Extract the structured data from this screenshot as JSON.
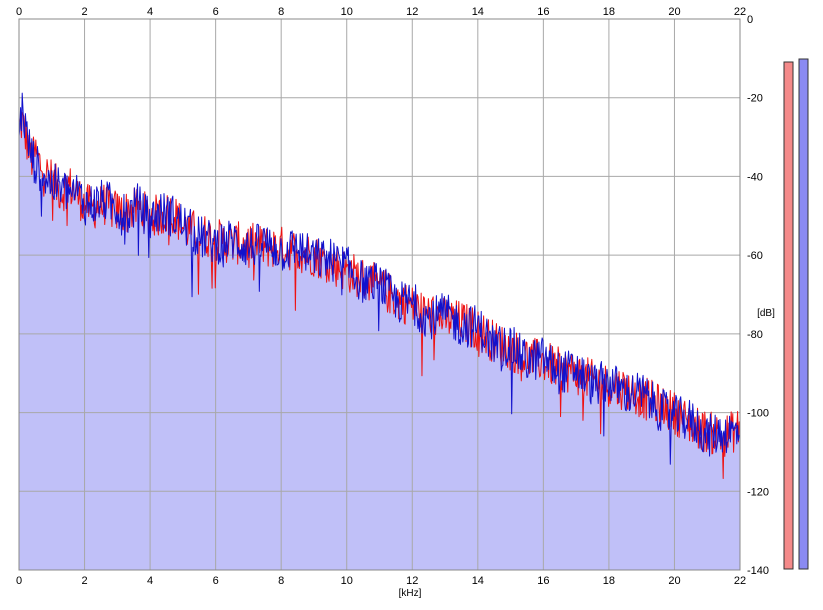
{
  "chart_data": {
    "type": "line",
    "title": "",
    "xlabel": "[kHz]",
    "ylabel": "[dB]",
    "xlim": [
      0,
      22
    ],
    "ylim": [
      -140,
      0
    ],
    "x_ticks": [
      "0",
      "2",
      "4",
      "6",
      "8",
      "10",
      "12",
      "14",
      "16",
      "18",
      "20",
      "22"
    ],
    "x_ticks_top": [
      "0",
      "2",
      "4",
      "6",
      "8",
      "10",
      "12",
      "14",
      "16",
      "18",
      "20",
      "22"
    ],
    "y_ticks": [
      "0",
      "-20",
      "-40",
      "-60",
      "-80",
      "-100",
      "-120",
      "-140"
    ],
    "grid": true,
    "colors": {
      "series_1": "#ee1111",
      "series_2": "#1111cc",
      "fill": "#c0c0f8",
      "grid": "#a8a8a8",
      "meter_1": "#f48a8a",
      "meter_2": "#8a8af2"
    },
    "series": [
      {
        "x": [
          0,
          0.1,
          0.2,
          0.3,
          0.4,
          0.5,
          0.7,
          1,
          1.3,
          1.5,
          1.8,
          2,
          2.3,
          2.6,
          3,
          3.3,
          3.6,
          4,
          4.3,
          4.7,
          5,
          5.4,
          6,
          6.5,
          7,
          7.5,
          8,
          8.5,
          9,
          9.5,
          10,
          10.5,
          11,
          11.5,
          12,
          12.5,
          13,
          13.5,
          14,
          14.5,
          15,
          15.5,
          16,
          16.5,
          17,
          17.5,
          18,
          18.5,
          19,
          19.5,
          20,
          20.5,
          21,
          21.5,
          22
        ],
        "values": [
          -28,
          -26,
          -30,
          -33,
          -36,
          -34,
          -38,
          -41,
          -44,
          -42,
          -45,
          -47,
          -48,
          -47,
          -49,
          -49,
          -48,
          -50,
          -50,
          -49,
          -53,
          -54,
          -56,
          -57,
          -57,
          -58,
          -58,
          -59,
          -60,
          -62,
          -64,
          -66,
          -68,
          -71,
          -73,
          -75,
          -76,
          -77,
          -79,
          -82,
          -84,
          -86,
          -87,
          -89,
          -90,
          -92,
          -93,
          -94,
          -96,
          -98,
          -100,
          -103,
          -105,
          -106,
          -104
        ]
      },
      {
        "x": [
          0,
          0.1,
          0.2,
          0.3,
          0.4,
          0.5,
          0.7,
          1,
          1.3,
          1.5,
          1.8,
          2,
          2.3,
          2.6,
          3,
          3.3,
          3.6,
          4,
          4.3,
          4.7,
          5,
          5.4,
          6,
          6.5,
          7,
          7.5,
          8,
          8.5,
          9,
          9.5,
          10,
          10.5,
          11,
          11.5,
          12,
          12.5,
          13,
          13.5,
          14,
          14.5,
          15,
          15.5,
          16,
          16.5,
          17,
          17.5,
          18,
          18.5,
          19,
          19.5,
          20,
          20.5,
          21,
          21.5,
          22
        ],
        "values": [
          -30,
          -22,
          -28,
          -32,
          -35,
          -37,
          -39,
          -42,
          -43,
          -44,
          -44,
          -47,
          -47,
          -46,
          -48,
          -50,
          -47,
          -51,
          -49,
          -50,
          -52,
          -55,
          -57,
          -56,
          -58,
          -57,
          -59,
          -58,
          -61,
          -61,
          -63,
          -67,
          -67,
          -72,
          -72,
          -76,
          -75,
          -78,
          -78,
          -83,
          -83,
          -87,
          -86,
          -90,
          -89,
          -93,
          -92,
          -95,
          -95,
          -99,
          -101,
          -102,
          -106,
          -105,
          -105
        ]
      }
    ]
  }
}
